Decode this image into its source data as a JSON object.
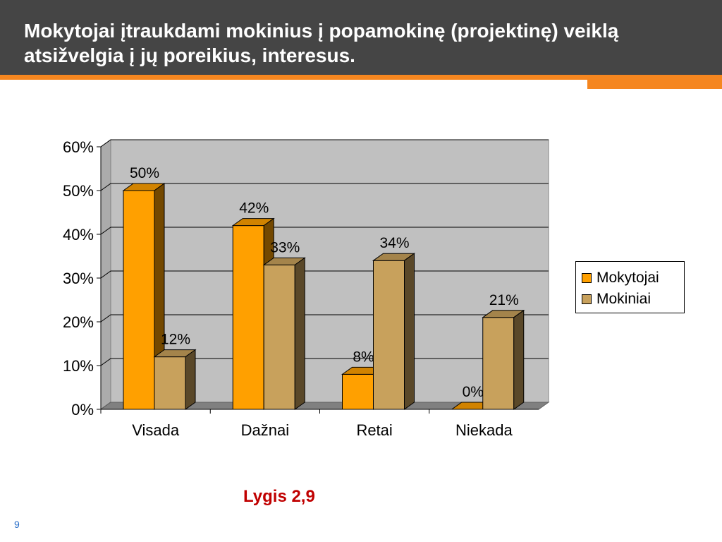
{
  "slide": {
    "title": "Mokytojai įtraukdami mokinius į popamokinę (projektinę) veiklą atsižvelgia į jų poreikius, interesus.",
    "note": "Lygis 2,9",
    "page_number": "9"
  },
  "colors": {
    "header_bg": "#454545",
    "accent": "#f5861f",
    "note": "#c00000",
    "page_number": "#2a6fc9"
  },
  "chart_data": {
    "type": "bar",
    "style": "3d-clustered",
    "categories": [
      "Visada",
      "Dažnai",
      "Retai",
      "Niekada"
    ],
    "series": [
      {
        "name": "Mokytojai",
        "values": [
          50,
          42,
          8,
          0
        ],
        "labels": [
          "50%",
          "42%",
          "8%",
          "0%"
        ],
        "color": "#ffa000"
      },
      {
        "name": "Mokiniai",
        "values": [
          12,
          33,
          34,
          21
        ],
        "labels": [
          "12%",
          "33%",
          "34%",
          "21%"
        ],
        "color": "#c8a15c"
      }
    ],
    "ylim": [
      0,
      60
    ],
    "yticks": [
      0,
      10,
      20,
      30,
      40,
      50,
      60
    ],
    "ytick_labels": [
      "0%",
      "10%",
      "20%",
      "30%",
      "40%",
      "50%",
      "60%"
    ],
    "grid": true,
    "legend": "right"
  }
}
